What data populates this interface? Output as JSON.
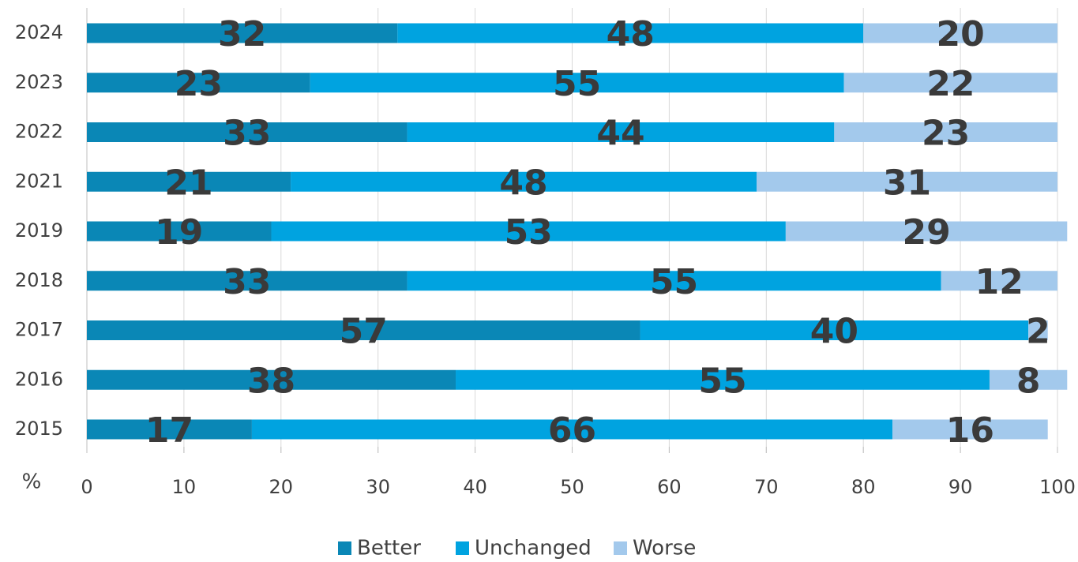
{
  "chart_data": {
    "type": "stacked-bar",
    "orientation": "horizontal",
    "categories": [
      "2024",
      "2023",
      "2022",
      "2021",
      "2019",
      "2018",
      "2017",
      "2016",
      "2015"
    ],
    "series": [
      {
        "name": "Better",
        "color": "#0a87b6",
        "values": [
          32,
          23,
          33,
          21,
          19,
          33,
          57,
          38,
          17
        ]
      },
      {
        "name": "Unchanged",
        "color": "#00a3e0",
        "values": [
          48,
          55,
          44,
          48,
          53,
          55,
          40,
          55,
          66
        ]
      },
      {
        "name": "Worse",
        "color": "#a3c9ec",
        "values": [
          20,
          22,
          23,
          31,
          29,
          12,
          2,
          8,
          16
        ]
      }
    ],
    "xlabel": "%",
    "xlim": [
      0,
      100
    ],
    "xticks": [
      0,
      10,
      20,
      30,
      40,
      50,
      60,
      70,
      80,
      90,
      100
    ],
    "grid": true,
    "legend": "bottom"
  }
}
